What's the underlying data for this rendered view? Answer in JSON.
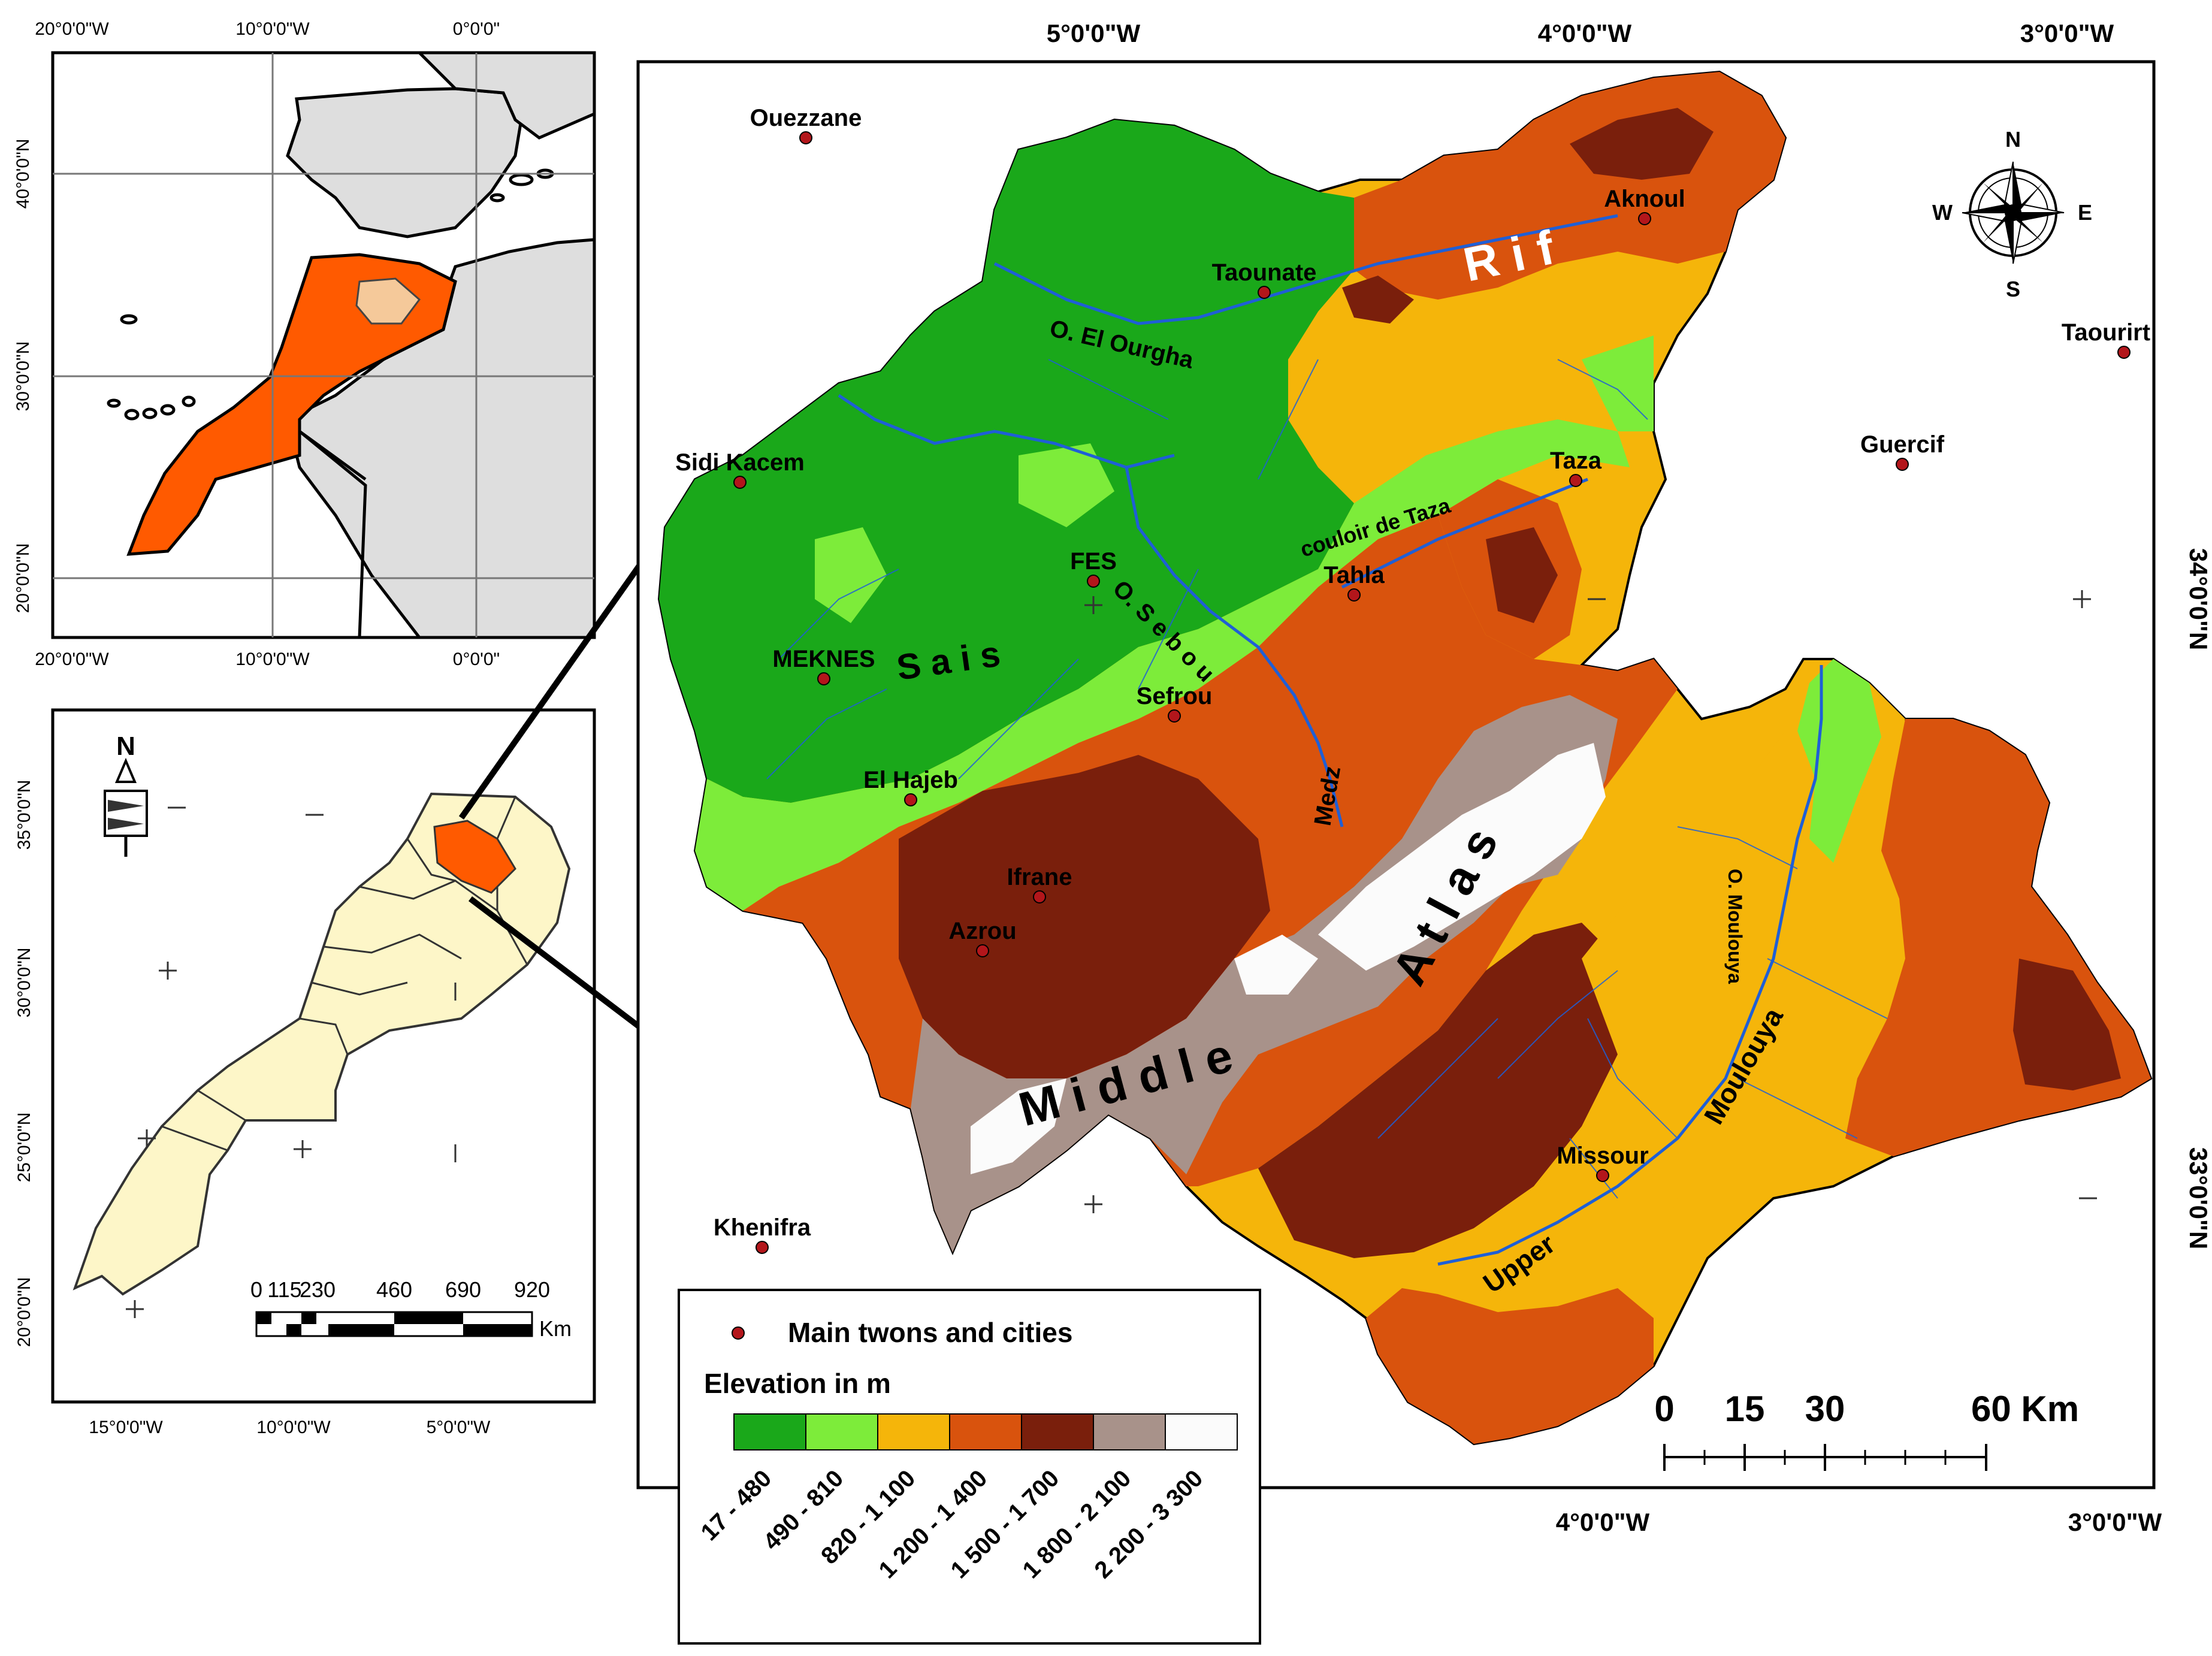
{
  "inset_world": {
    "top_ticks": [
      "20°0'0\"W",
      "10°0'0\"W",
      "0°0'0\""
    ],
    "bottom_ticks": [
      "20°0'0\"W",
      "10°0'0\"W",
      "0°0'0\""
    ],
    "left_ticks": [
      "40°0'0\"N",
      "30°0'0\"N",
      "20°0'0\"N"
    ]
  },
  "inset_morocco": {
    "bottom_ticks": [
      "15°0'0\"W",
      "10°0'0\"W",
      "5°0'0\"W"
    ],
    "left_ticks": [
      "35°0'0\"N",
      "30°0'0\"N",
      "25°0'0\"N",
      "20°0'0\"N"
    ],
    "north_letter": "N",
    "scale_numbers": [
      "0",
      "115",
      "230",
      "460",
      "690",
      "920"
    ],
    "scale_unit": "Km"
  },
  "main_map": {
    "top_ticks": [
      "5°0'0\"W",
      "4°0'0\"W",
      "3°0'0\"W"
    ],
    "bottom_ticks": [
      "4°0'0\"W",
      "3°0'0\"W"
    ],
    "right_ticks": [
      "34°0'0\"N",
      "33°0'0\"N"
    ],
    "towns": [
      {
        "name": "Ouezzane"
      },
      {
        "name": "Aknoul"
      },
      {
        "name": "Taounate"
      },
      {
        "name": "Taourirt"
      },
      {
        "name": "Sidi Kacem"
      },
      {
        "name": "Guercif"
      },
      {
        "name": "Taza"
      },
      {
        "name": "FES"
      },
      {
        "name": "Tahla"
      },
      {
        "name": "MEKNES"
      },
      {
        "name": "Sefrou"
      },
      {
        "name": "El Hajeb"
      },
      {
        "name": "Ifrane"
      },
      {
        "name": "Azrou"
      },
      {
        "name": "Missour"
      },
      {
        "name": "Khenifra"
      }
    ],
    "features": {
      "rif": "R i f",
      "ourgha": "O. El Ourgha",
      "couloir": "couloir de Taza",
      "sebou": "O. S e b o u",
      "sais": "S a i s",
      "medz": "Medz",
      "middle_atlas_1": "M i d d l e",
      "middle_atlas_2": "A t l a s",
      "moulouya_river": "O. Moulouya",
      "upper_moulouya_1": "Upper",
      "upper_moulouya_2": "Moulouya"
    },
    "compass": {
      "n": "N",
      "s": "S",
      "e": "E",
      "w": "W"
    },
    "scale_numbers": [
      "0",
      "15",
      "30",
      "60 Km"
    ]
  },
  "legend": {
    "towns_label": "Main twons and cities",
    "elevation_title": "Elevation in m",
    "classes": [
      {
        "range": "17 - 480",
        "color": "#1aa81a"
      },
      {
        "range": "490 - 810",
        "color": "#7dec3a"
      },
      {
        "range": "820 - 1 100",
        "color": "#f5b50a"
      },
      {
        "range": "1 200 - 1 400",
        "color": "#d9530d"
      },
      {
        "range": "1 500 - 1 700",
        "color": "#7a1f0c"
      },
      {
        "range": "1 800 - 2 100",
        "color": "#a8928a"
      },
      {
        "range": "2 200 - 3 300",
        "color": "#fbfbfb"
      }
    ]
  },
  "colors": {
    "morocco_highlight": "#ff5a00",
    "study_area_inset": "#f5c99a",
    "regions_fill": "#fdf6c8",
    "land_grey": "#dedede",
    "river": "#1f5fd6",
    "town_dot": "#b3161b"
  }
}
